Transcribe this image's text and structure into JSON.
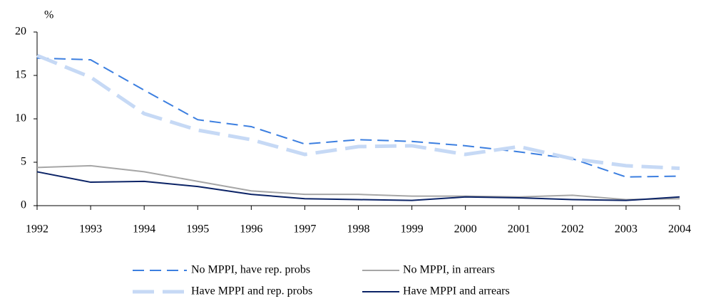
{
  "chart_data": {
    "type": "line",
    "y_label": "%",
    "x": [
      1992,
      1993,
      1994,
      1995,
      1996,
      1997,
      1998,
      1999,
      2000,
      2001,
      2002,
      2003,
      2004
    ],
    "xlim": [
      1992,
      2004
    ],
    "xticks": [
      1992,
      1993,
      1994,
      1995,
      1996,
      1997,
      1998,
      1999,
      2000,
      2001,
      2002,
      2003,
      2004
    ],
    "ylim": [
      0,
      20
    ],
    "yticks": [
      0,
      5,
      10,
      15,
      20
    ],
    "grid": false,
    "legend": "bottom",
    "series": [
      {
        "name": "No MPPI, have rep. probs",
        "color": "#3c7fe0",
        "line_style": "dashed",
        "linewidth": 2,
        "values": [
          17.0,
          16.8,
          13.3,
          9.9,
          9.1,
          7.1,
          7.6,
          7.4,
          6.9,
          6.2,
          5.4,
          3.3,
          3.4
        ]
      },
      {
        "name": "No MPPI, in arrears",
        "color": "#a6a6a6",
        "line_style": "solid",
        "linewidth": 2,
        "values": [
          4.4,
          4.6,
          3.9,
          2.8,
          1.7,
          1.3,
          1.3,
          1.1,
          1.1,
          1.0,
          1.2,
          0.7,
          0.8
        ]
      },
      {
        "name": "Have MPPI and rep. probs",
        "color": "#c6d9f5",
        "line_style": "dashed",
        "linewidth": 5,
        "values": [
          17.3,
          14.8,
          10.6,
          8.7,
          7.6,
          5.9,
          6.8,
          6.9,
          5.9,
          6.8,
          5.4,
          4.6,
          4.3
        ]
      },
      {
        "name": "Have MPPI and arrears",
        "color": "#0b2366",
        "line_style": "solid",
        "linewidth": 2,
        "values": [
          3.9,
          2.7,
          2.8,
          2.2,
          1.3,
          0.8,
          0.7,
          0.6,
          1.0,
          0.9,
          0.7,
          0.6,
          1.0
        ]
      }
    ]
  }
}
